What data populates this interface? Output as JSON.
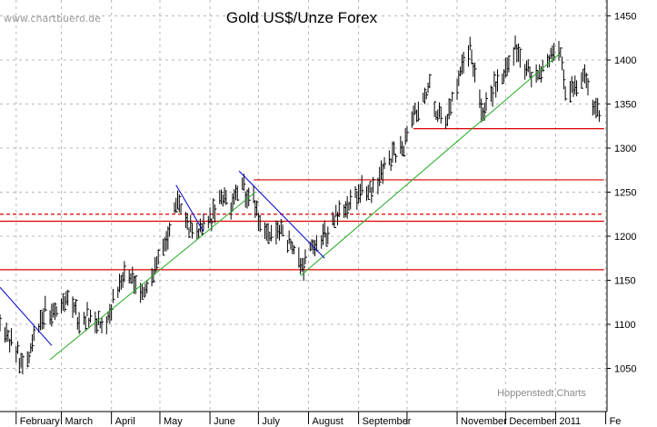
{
  "chart_data": {
    "type": "ohlc",
    "title": "Gold US$/Unze Forex",
    "watermark": "www.chartbuero.de",
    "credit": "Hoppenstedt Charts",
    "ylim": [
      1000,
      1470
    ],
    "yticks": [
      1050,
      1100,
      1150,
      1200,
      1250,
      1300,
      1350,
      1400,
      1450
    ],
    "x_start": "2010-01-22",
    "x_end": "2011-01-31",
    "months": [
      {
        "label": "February",
        "date": "2010-02-01"
      },
      {
        "label": "March",
        "date": "2010-03-01"
      },
      {
        "label": "April",
        "date": "2010-04-01"
      },
      {
        "label": "May",
        "date": "2010-05-01"
      },
      {
        "label": "June",
        "date": "2010-06-01"
      },
      {
        "label": "July",
        "date": "2010-07-01"
      },
      {
        "label": "August",
        "date": "2010-08-01"
      },
      {
        "label": "September",
        "date": "2010-09-01"
      },
      {
        "label": "November",
        "date": "2010-11-01"
      },
      {
        "label": "December",
        "date": "2010-12-01"
      },
      {
        "label": "2011",
        "date": "2011-01-01"
      },
      {
        "label": "Fe",
        "date": "2011-02-01"
      }
    ],
    "extra_gridlines": [
      "2010-10-01"
    ],
    "trend_points": [
      [
        "2010-01-22",
        1100
      ],
      [
        "2010-01-28",
        1085
      ],
      [
        "2010-02-05",
        1055
      ],
      [
        "2010-02-12",
        1080
      ],
      [
        "2010-02-19",
        1115
      ],
      [
        "2010-02-26",
        1110
      ],
      [
        "2010-03-05",
        1130
      ],
      [
        "2010-03-12",
        1105
      ],
      [
        "2010-03-19",
        1110
      ],
      [
        "2010-03-26",
        1095
      ],
      [
        "2010-04-02",
        1125
      ],
      [
        "2010-04-09",
        1155
      ],
      [
        "2010-04-16",
        1145
      ],
      [
        "2010-04-23",
        1140
      ],
      [
        "2010-04-30",
        1175
      ],
      [
        "2010-05-07",
        1205
      ],
      [
        "2010-05-12",
        1240
      ],
      [
        "2010-05-19",
        1210
      ],
      [
        "2010-05-26",
        1205
      ],
      [
        "2010-06-02",
        1220
      ],
      [
        "2010-06-08",
        1245
      ],
      [
        "2010-06-14",
        1230
      ],
      [
        "2010-06-21",
        1255
      ],
      [
        "2010-06-28",
        1245
      ],
      [
        "2010-07-02",
        1210
      ],
      [
        "2010-07-09",
        1200
      ],
      [
        "2010-07-16",
        1205
      ],
      [
        "2010-07-23",
        1185
      ],
      [
        "2010-07-28",
        1165
      ],
      [
        "2010-08-04",
        1190
      ],
      [
        "2010-08-11",
        1200
      ],
      [
        "2010-08-18",
        1225
      ],
      [
        "2010-08-25",
        1235
      ],
      [
        "2010-09-01",
        1250
      ],
      [
        "2010-09-08",
        1255
      ],
      [
        "2010-09-15",
        1270
      ],
      [
        "2010-09-22",
        1290
      ],
      [
        "2010-09-29",
        1305
      ],
      [
        "2010-10-06",
        1340
      ],
      [
        "2010-10-11",
        1355
      ],
      [
        "2010-10-15",
        1370
      ],
      [
        "2010-10-20",
        1335
      ],
      [
        "2010-10-27",
        1340
      ],
      [
        "2010-11-03",
        1385
      ],
      [
        "2010-11-09",
        1410
      ],
      [
        "2010-11-16",
        1340
      ],
      [
        "2010-11-23",
        1365
      ],
      [
        "2010-11-30",
        1385
      ],
      [
        "2010-12-07",
        1415
      ],
      [
        "2010-12-14",
        1385
      ],
      [
        "2010-12-21",
        1380
      ],
      [
        "2010-12-28",
        1405
      ],
      [
        "2011-01-03",
        1415
      ],
      [
        "2011-01-07",
        1370
      ],
      [
        "2011-01-14",
        1370
      ],
      [
        "2011-01-19",
        1380
      ],
      [
        "2011-01-24",
        1345
      ],
      [
        "2011-01-28",
        1340
      ]
    ],
    "support_lines": [
      {
        "y": 1162,
        "color": "#dd0000",
        "dashed": false,
        "from": "2010-01-22",
        "to": "2011-01-31"
      },
      {
        "y": 1217,
        "color": "#dd0000",
        "dashed": false,
        "from": "2010-01-22",
        "to": "2011-01-31"
      },
      {
        "y": 1225,
        "color": "#dd0000",
        "dashed": true,
        "from": "2010-01-22",
        "to": "2011-01-31"
      },
      {
        "y": 1264,
        "color": "#dd0000",
        "dashed": false,
        "from": "2010-06-28",
        "to": "2011-01-31"
      },
      {
        "y": 1322,
        "color": "#dd0000",
        "dashed": false,
        "from": "2010-10-05",
        "to": "2011-01-31"
      }
    ],
    "trend_lines": [
      {
        "color": "#22aa22",
        "from": [
          "2010-02-22",
          1060
        ],
        "to": [
          "2010-06-29",
          1250
        ]
      },
      {
        "color": "#22aa22",
        "from": [
          "2010-07-27",
          1155
        ],
        "to": [
          "2011-01-04",
          1408
        ]
      },
      {
        "color": "#0000cc",
        "from": [
          "2010-01-22",
          1142
        ],
        "to": [
          "2010-02-23",
          1076
        ]
      },
      {
        "color": "#0000cc",
        "from": [
          "2010-05-11",
          1258
        ],
        "to": [
          "2010-05-28",
          1205
        ]
      },
      {
        "color": "#0000cc",
        "from": [
          "2010-06-19",
          1274
        ],
        "to": [
          "2010-08-11",
          1175
        ]
      }
    ],
    "colors": {
      "bars": "#000000",
      "grid": "#b8b8b8",
      "axis": "#000000",
      "background": "#ffffff"
    }
  }
}
